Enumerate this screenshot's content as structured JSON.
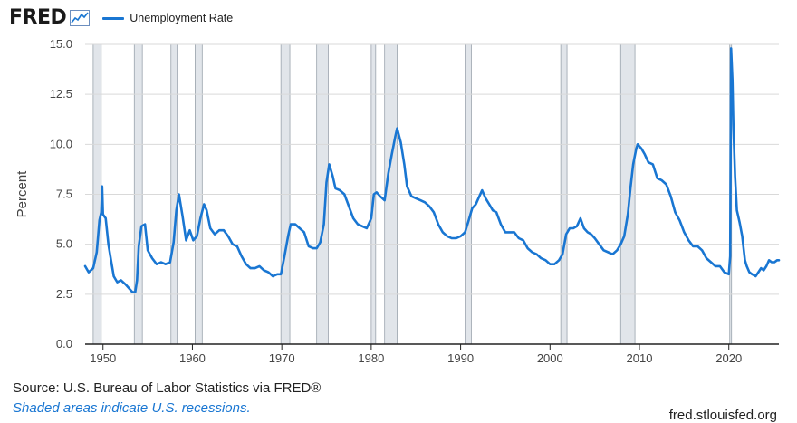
{
  "header": {
    "logo_text": "FRED",
    "logo_icon": "sparkline-chart-icon",
    "series_label": "Unemployment Rate",
    "series_color": "#1976d2"
  },
  "footer": {
    "source": "Source: U.S. Bureau of Labor Statistics via FRED®",
    "shade_note": "Shaded areas indicate U.S. recessions.",
    "site": "fred.stlouisfed.org"
  },
  "chart_data": {
    "type": "line",
    "title": "",
    "xlabel": "",
    "ylabel": "Percent",
    "xlim": [
      1948,
      2025.6
    ],
    "ylim": [
      0,
      15
    ],
    "yticks": [
      0,
      2.5,
      5,
      7.5,
      10,
      12.5,
      15
    ],
    "ytick_labels": [
      "0.0",
      "2.5",
      "5.0",
      "7.5",
      "10.0",
      "12.5",
      "15.0"
    ],
    "xticks": [
      1950,
      1960,
      1970,
      1980,
      1990,
      2000,
      2010,
      2020
    ],
    "xtick_labels": [
      "1950",
      "1960",
      "1970",
      "1980",
      "1990",
      "2000",
      "2010",
      "2020"
    ],
    "grid": "horizontal",
    "recessions": [
      [
        1948.9,
        1949.8
      ],
      [
        1953.5,
        1954.4
      ],
      [
        1957.6,
        1958.3
      ],
      [
        1960.3,
        1961.1
      ],
      [
        1969.9,
        1970.9
      ],
      [
        1973.9,
        1975.2
      ],
      [
        1980.0,
        1980.5
      ],
      [
        1981.5,
        1982.9
      ],
      [
        1990.5,
        1991.2
      ],
      [
        2001.2,
        2001.9
      ],
      [
        2007.9,
        2009.5
      ],
      [
        2020.1,
        2020.3
      ]
    ],
    "series": [
      {
        "name": "Unemployment Rate",
        "color": "#1976d2",
        "points": [
          [
            1948.0,
            3.9
          ],
          [
            1948.4,
            3.6
          ],
          [
            1948.9,
            3.8
          ],
          [
            1949.3,
            4.6
          ],
          [
            1949.6,
            6.2
          ],
          [
            1949.8,
            6.6
          ],
          [
            1949.9,
            7.9
          ],
          [
            1950.0,
            6.5
          ],
          [
            1950.3,
            6.3
          ],
          [
            1950.6,
            5.0
          ],
          [
            1950.9,
            4.2
          ],
          [
            1951.2,
            3.4
          ],
          [
            1951.6,
            3.1
          ],
          [
            1952.0,
            3.2
          ],
          [
            1952.5,
            3.0
          ],
          [
            1952.9,
            2.8
          ],
          [
            1953.3,
            2.6
          ],
          [
            1953.6,
            2.6
          ],
          [
            1953.8,
            3.2
          ],
          [
            1954.0,
            4.9
          ],
          [
            1954.3,
            5.9
          ],
          [
            1954.7,
            6.0
          ],
          [
            1955.0,
            4.7
          ],
          [
            1955.5,
            4.3
          ],
          [
            1956.0,
            4.0
          ],
          [
            1956.5,
            4.1
          ],
          [
            1957.0,
            4.0
          ],
          [
            1957.5,
            4.1
          ],
          [
            1957.9,
            5.1
          ],
          [
            1958.2,
            6.7
          ],
          [
            1958.5,
            7.5
          ],
          [
            1958.9,
            6.4
          ],
          [
            1959.3,
            5.2
          ],
          [
            1959.7,
            5.7
          ],
          [
            1960.1,
            5.2
          ],
          [
            1960.5,
            5.4
          ],
          [
            1960.9,
            6.3
          ],
          [
            1961.3,
            7.0
          ],
          [
            1961.6,
            6.7
          ],
          [
            1962.0,
            5.8
          ],
          [
            1962.5,
            5.5
          ],
          [
            1963.0,
            5.7
          ],
          [
            1963.5,
            5.7
          ],
          [
            1964.0,
            5.4
          ],
          [
            1964.5,
            5.0
          ],
          [
            1965.0,
            4.9
          ],
          [
            1965.5,
            4.4
          ],
          [
            1966.0,
            4.0
          ],
          [
            1966.5,
            3.8
          ],
          [
            1967.0,
            3.8
          ],
          [
            1967.5,
            3.9
          ],
          [
            1968.0,
            3.7
          ],
          [
            1968.5,
            3.6
          ],
          [
            1969.0,
            3.4
          ],
          [
            1969.5,
            3.5
          ],
          [
            1969.9,
            3.5
          ],
          [
            1970.3,
            4.4
          ],
          [
            1970.7,
            5.4
          ],
          [
            1971.0,
            6.0
          ],
          [
            1971.5,
            6.0
          ],
          [
            1972.0,
            5.8
          ],
          [
            1972.5,
            5.6
          ],
          [
            1973.0,
            4.9
          ],
          [
            1973.5,
            4.8
          ],
          [
            1973.9,
            4.8
          ],
          [
            1974.3,
            5.1
          ],
          [
            1974.7,
            6.0
          ],
          [
            1975.0,
            8.1
          ],
          [
            1975.3,
            9.0
          ],
          [
            1975.7,
            8.4
          ],
          [
            1976.0,
            7.8
          ],
          [
            1976.5,
            7.7
          ],
          [
            1977.0,
            7.5
          ],
          [
            1977.5,
            6.9
          ],
          [
            1978.0,
            6.3
          ],
          [
            1978.5,
            6.0
          ],
          [
            1979.0,
            5.9
          ],
          [
            1979.5,
            5.8
          ],
          [
            1980.0,
            6.3
          ],
          [
            1980.3,
            7.5
          ],
          [
            1980.6,
            7.6
          ],
          [
            1981.0,
            7.4
          ],
          [
            1981.5,
            7.2
          ],
          [
            1981.9,
            8.5
          ],
          [
            1982.3,
            9.5
          ],
          [
            1982.7,
            10.4
          ],
          [
            1982.9,
            10.8
          ],
          [
            1983.3,
            10.1
          ],
          [
            1983.7,
            9.0
          ],
          [
            1984.0,
            7.9
          ],
          [
            1984.5,
            7.4
          ],
          [
            1985.0,
            7.3
          ],
          [
            1985.5,
            7.2
          ],
          [
            1986.0,
            7.1
          ],
          [
            1986.5,
            6.9
          ],
          [
            1987.0,
            6.6
          ],
          [
            1987.5,
            6.0
          ],
          [
            1988.0,
            5.6
          ],
          [
            1988.5,
            5.4
          ],
          [
            1989.0,
            5.3
          ],
          [
            1989.5,
            5.3
          ],
          [
            1990.0,
            5.4
          ],
          [
            1990.5,
            5.6
          ],
          [
            1990.9,
            6.2
          ],
          [
            1991.3,
            6.8
          ],
          [
            1991.7,
            7.0
          ],
          [
            1992.0,
            7.3
          ],
          [
            1992.4,
            7.7
          ],
          [
            1992.8,
            7.3
          ],
          [
            1993.2,
            7.0
          ],
          [
            1993.6,
            6.7
          ],
          [
            1994.0,
            6.6
          ],
          [
            1994.5,
            6.0
          ],
          [
            1995.0,
            5.6
          ],
          [
            1995.5,
            5.6
          ],
          [
            1996.0,
            5.6
          ],
          [
            1996.5,
            5.3
          ],
          [
            1997.0,
            5.2
          ],
          [
            1997.5,
            4.8
          ],
          [
            1998.0,
            4.6
          ],
          [
            1998.5,
            4.5
          ],
          [
            1999.0,
            4.3
          ],
          [
            1999.5,
            4.2
          ],
          [
            2000.0,
            4.0
          ],
          [
            2000.5,
            4.0
          ],
          [
            2001.0,
            4.2
          ],
          [
            2001.4,
            4.5
          ],
          [
            2001.8,
            5.5
          ],
          [
            2002.2,
            5.8
          ],
          [
            2002.6,
            5.8
          ],
          [
            2003.0,
            5.9
          ],
          [
            2003.4,
            6.3
          ],
          [
            2003.8,
            5.8
          ],
          [
            2004.2,
            5.6
          ],
          [
            2004.6,
            5.5
          ],
          [
            2005.0,
            5.3
          ],
          [
            2005.5,
            5.0
          ],
          [
            2006.0,
            4.7
          ],
          [
            2006.5,
            4.6
          ],
          [
            2007.0,
            4.5
          ],
          [
            2007.5,
            4.7
          ],
          [
            2007.9,
            5.0
          ],
          [
            2008.3,
            5.4
          ],
          [
            2008.7,
            6.5
          ],
          [
            2009.0,
            7.8
          ],
          [
            2009.3,
            9.0
          ],
          [
            2009.6,
            9.7
          ],
          [
            2009.8,
            10.0
          ],
          [
            2010.2,
            9.8
          ],
          [
            2010.6,
            9.5
          ],
          [
            2011.0,
            9.1
          ],
          [
            2011.5,
            9.0
          ],
          [
            2012.0,
            8.3
          ],
          [
            2012.5,
            8.2
          ],
          [
            2013.0,
            8.0
          ],
          [
            2013.5,
            7.4
          ],
          [
            2014.0,
            6.6
          ],
          [
            2014.5,
            6.2
          ],
          [
            2015.0,
            5.6
          ],
          [
            2015.5,
            5.2
          ],
          [
            2016.0,
            4.9
          ],
          [
            2016.5,
            4.9
          ],
          [
            2017.0,
            4.7
          ],
          [
            2017.5,
            4.3
          ],
          [
            2018.0,
            4.1
          ],
          [
            2018.5,
            3.9
          ],
          [
            2019.0,
            3.9
          ],
          [
            2019.5,
            3.6
          ],
          [
            2020.0,
            3.5
          ],
          [
            2020.15,
            4.4
          ],
          [
            2020.25,
            14.8
          ],
          [
            2020.4,
            13.2
          ],
          [
            2020.5,
            11.0
          ],
          [
            2020.7,
            8.4
          ],
          [
            2020.9,
            6.7
          ],
          [
            2021.2,
            6.1
          ],
          [
            2021.5,
            5.4
          ],
          [
            2021.8,
            4.2
          ],
          [
            2022.0,
            3.9
          ],
          [
            2022.3,
            3.6
          ],
          [
            2022.6,
            3.5
          ],
          [
            2023.0,
            3.4
          ],
          [
            2023.3,
            3.6
          ],
          [
            2023.6,
            3.8
          ],
          [
            2023.9,
            3.7
          ],
          [
            2024.2,
            3.9
          ],
          [
            2024.5,
            4.2
          ],
          [
            2024.8,
            4.1
          ],
          [
            2025.1,
            4.1
          ],
          [
            2025.4,
            4.2
          ],
          [
            2025.6,
            4.2
          ]
        ]
      }
    ]
  }
}
